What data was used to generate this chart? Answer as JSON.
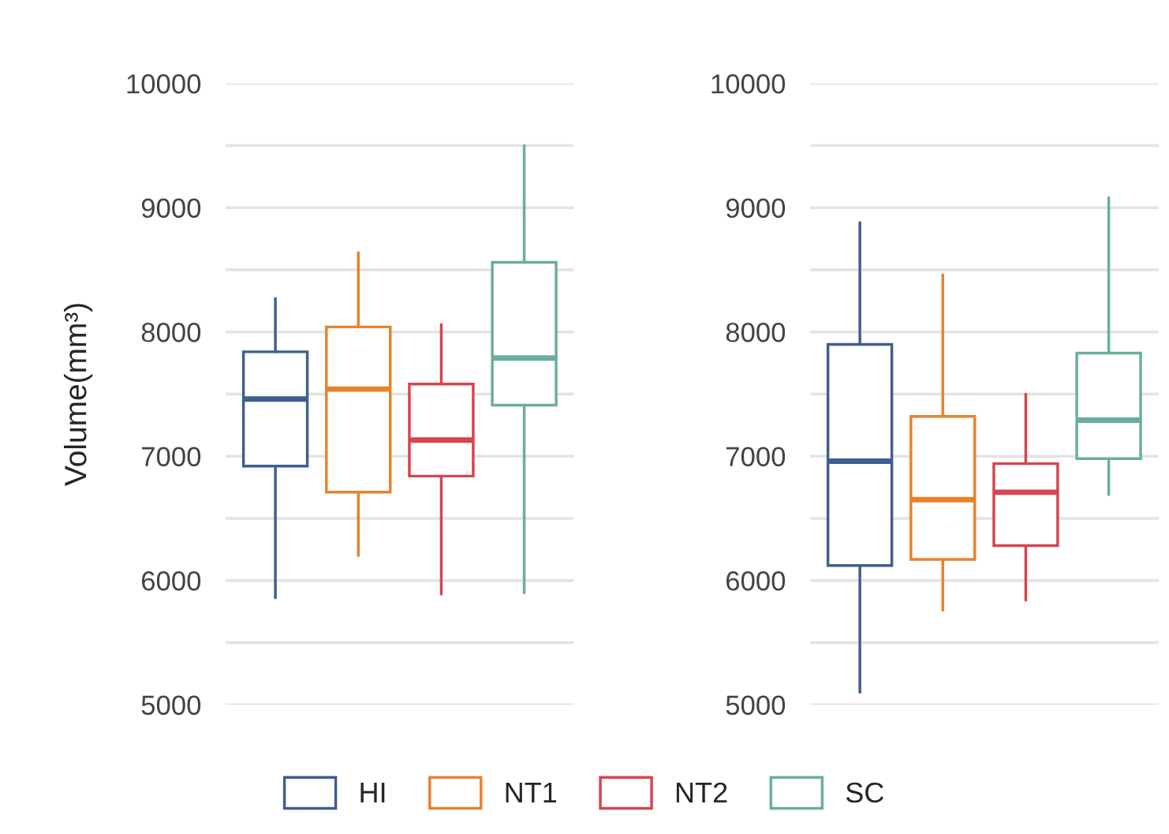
{
  "chart_data": [
    {
      "type": "box",
      "ylabel": "Volume(mm³)",
      "categories": [
        null,
        null,
        null,
        null
      ],
      "ylim": [
        5000,
        10000
      ],
      "yticks": [
        5000,
        {
          "value": 5500,
          "label": null
        },
        6000,
        {
          "value": 6500,
          "label": null
        },
        7000,
        {
          "value": 7500,
          "label": null
        },
        8000,
        {
          "value": 8500,
          "label": null
        },
        9000,
        {
          "value": 9500,
          "label": null
        },
        10000
      ],
      "grid": "y",
      "legend": "bottom",
      "series": [
        {
          "name": "HI",
          "color": "#3e5f8f",
          "boxes": [
            {
              "low": 5860,
              "q1": 6920,
              "median": 7460,
              "q3": 7840,
              "high": 8270
            },
            null,
            null,
            null
          ]
        },
        {
          "name": "NT1",
          "color": "#e8822e",
          "boxes": [
            null,
            {
              "low": 6200,
              "q1": 6710,
              "median": 7540,
              "q3": 8040,
              "high": 8640
            },
            null,
            null
          ]
        },
        {
          "name": "NT2",
          "color": "#d64550",
          "boxes": [
            null,
            null,
            {
              "low": 5890,
              "q1": 6840,
              "median": 7130,
              "q3": 7580,
              "high": 8060
            },
            null
          ]
        },
        {
          "name": "SC",
          "color": "#6aaea0",
          "boxes": [
            null,
            null,
            null,
            {
              "low": 5900,
              "q1": 7410,
              "median": 7790,
              "q3": 8560,
              "high": 9500
            }
          ]
        }
      ]
    },
    {
      "type": "box",
      "categories": [
        null,
        null,
        null,
        null
      ],
      "ylim": [
        5000,
        10000
      ],
      "yticks": [
        5000,
        {
          "value": 5500,
          "label": null
        },
        6000,
        {
          "value": 6500,
          "label": null
        },
        7000,
        {
          "value": 7500,
          "label": null
        },
        8000,
        {
          "value": 8500,
          "label": null
        },
        9000,
        {
          "value": 9500,
          "label": null
        },
        10000
      ],
      "grid": "y",
      "series": [
        {
          "color": "#3e5f8f",
          "boxes": [
            {
              "low": 5100,
              "q1": 6120,
              "median": 6960,
              "q3": 7900,
              "high": 8880
            },
            null,
            null,
            null
          ]
        },
        {
          "color": "#e8822e",
          "boxes": [
            null,
            {
              "low": 5760,
              "q1": 6170,
              "median": 6650,
              "q3": 7320,
              "high": 8460
            },
            null,
            null
          ]
        },
        {
          "color": "#d64550",
          "boxes": [
            null,
            null,
            {
              "low": 5840,
              "q1": 6280,
              "median": 6710,
              "q3": 6940,
              "high": 7500
            },
            null
          ]
        },
        {
          "color": "#6aaea0",
          "boxes": [
            null,
            null,
            null,
            {
              "low": 6690,
              "q1": 6980,
              "median": 7290,
              "q3": 7830,
              "high": 9080
            }
          ]
        }
      ]
    }
  ]
}
